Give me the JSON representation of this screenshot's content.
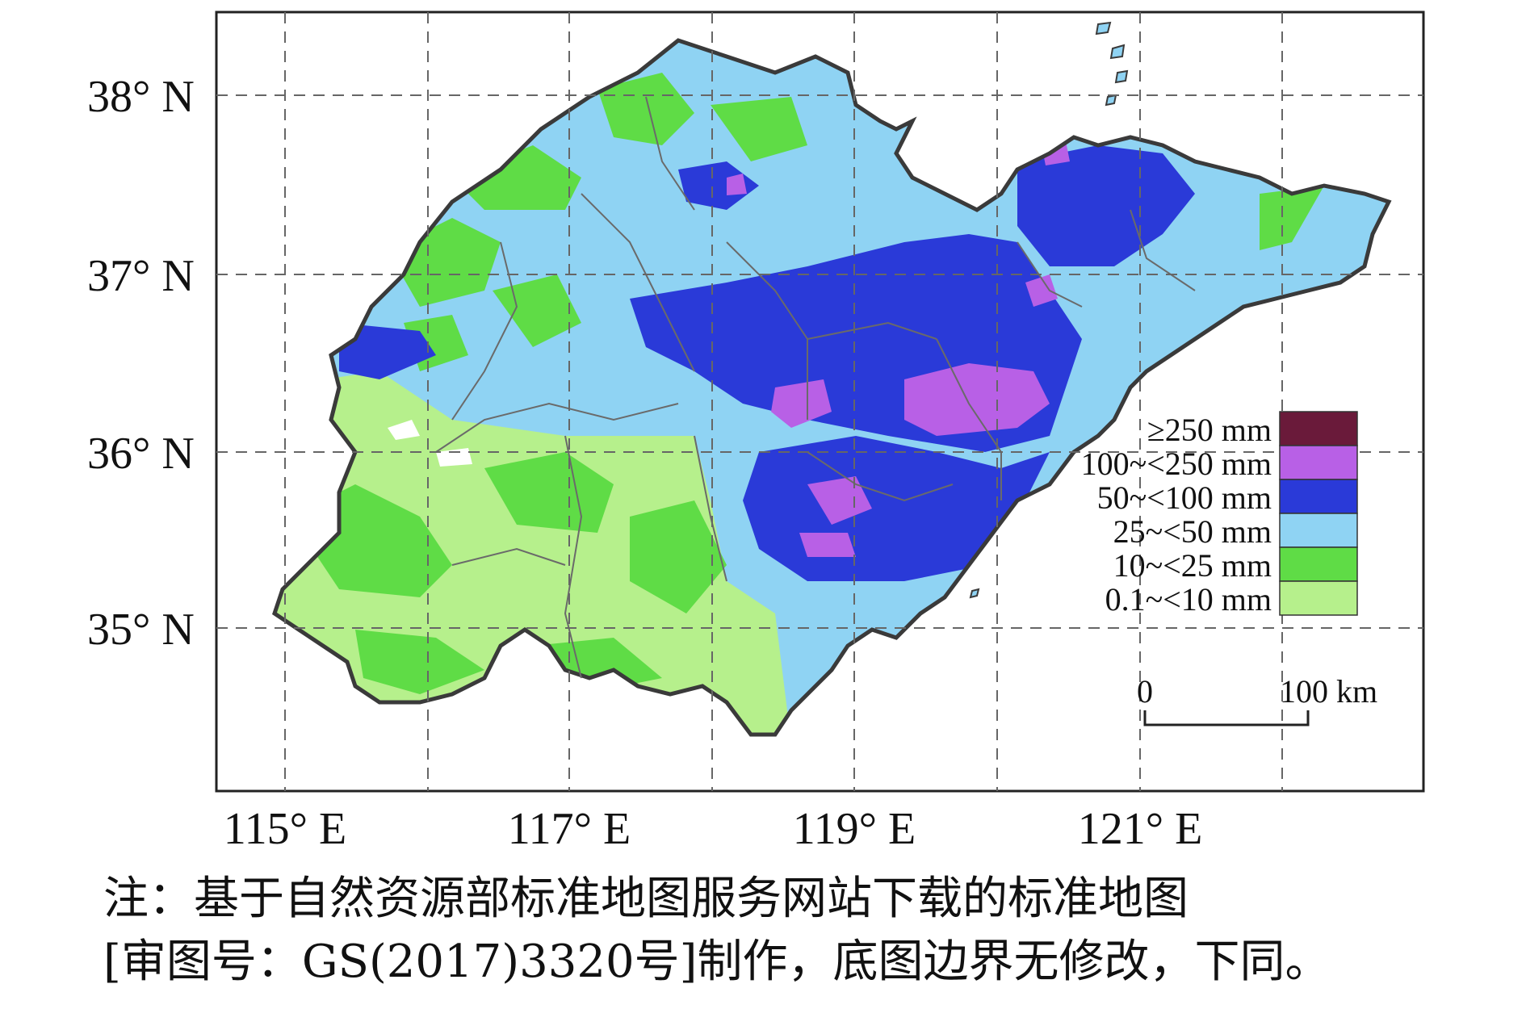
{
  "map": {
    "lat_labels": [
      "38° N",
      "37° N",
      "36° N",
      "35° N"
    ],
    "lon_labels": [
      "115° E",
      "117° E",
      "119° E",
      "121° E"
    ],
    "colors": {
      "c0": "#b6f08c",
      "c1": "#5fdc46",
      "c2": "#8fd3f3",
      "c3": "#2a3ad8",
      "c4": "#b860e6",
      "c5": "#6a1a3a",
      "border": "#3a3a3a",
      "grid": "#666666"
    }
  },
  "legend": {
    "items": [
      {
        "label": "≥250 mm",
        "color": "#6a1a3a"
      },
      {
        "label": "100~<250 mm",
        "color": "#b860e6"
      },
      {
        "label": "50~<100 mm",
        "color": "#2a3ad8"
      },
      {
        "label": "25~<50 mm",
        "color": "#8fd3f3"
      },
      {
        "label": "10~<25 mm",
        "color": "#5fdc46"
      },
      {
        "label": "0.1~<10 mm",
        "color": "#b6f08c"
      }
    ]
  },
  "scale": {
    "zero": "0",
    "max": "100 km"
  },
  "caption": {
    "line1": "注：基于自然资源部标准地图服务网站下载的标准地图",
    "line2": "[审图号：GS(2017)3320号]制作，底图边界无修改，下同。"
  }
}
